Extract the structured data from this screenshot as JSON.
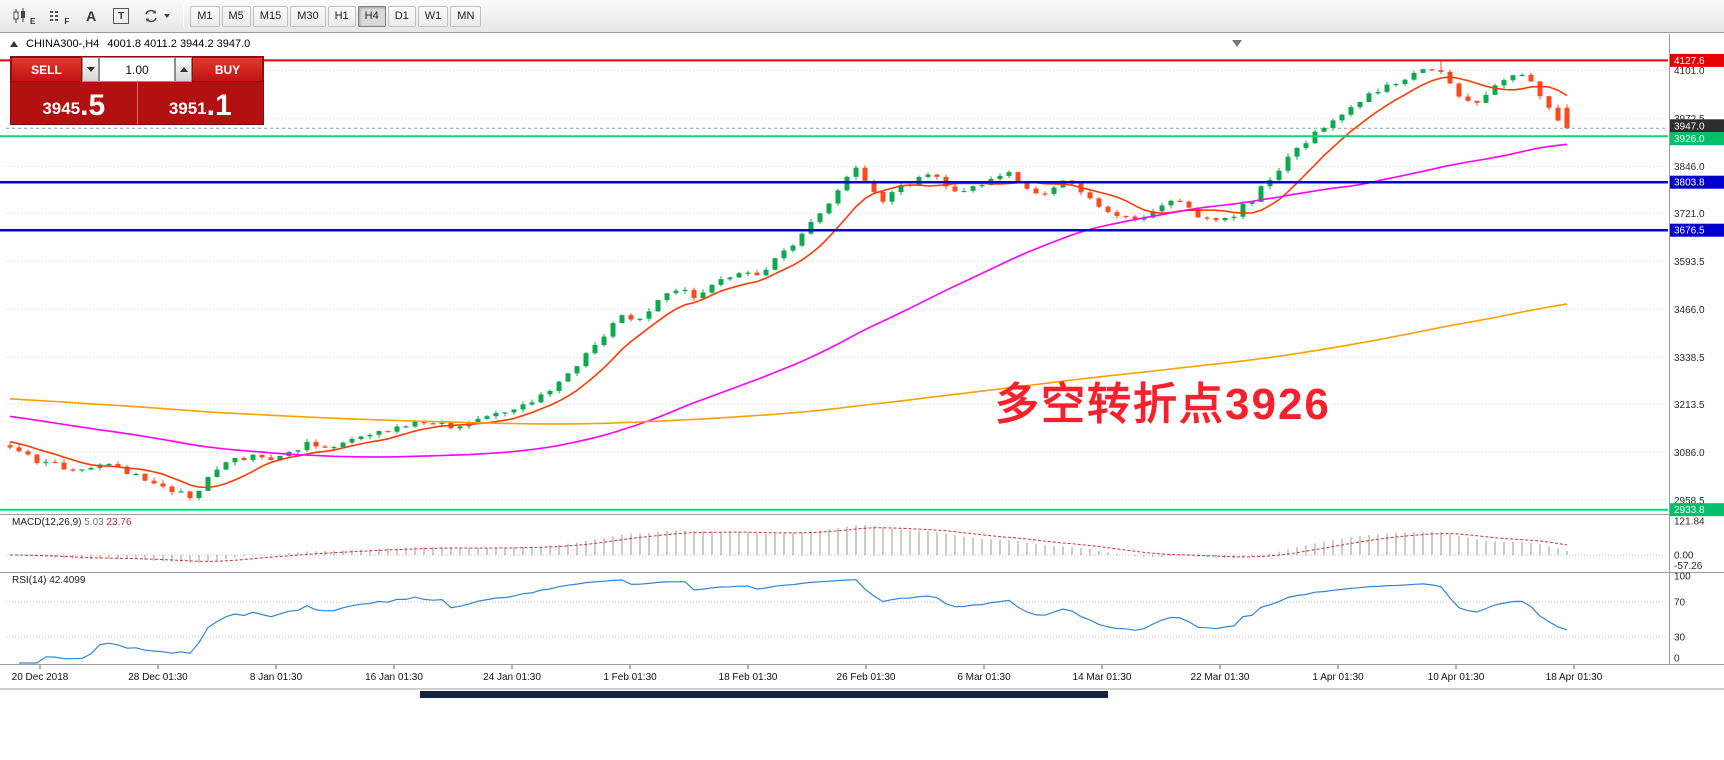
{
  "toolbar": {
    "icon_labels": [
      "E",
      "F",
      "A",
      "T"
    ],
    "timeframes": [
      "M1",
      "M5",
      "M15",
      "M30",
      "H1",
      "H4",
      "D1",
      "W1",
      "MN"
    ],
    "active_timeframe": "H4"
  },
  "chart_header": {
    "symbol": "CHINA300-,H4",
    "ohlc": "4001.8 4011.2 3944.2 3947.0"
  },
  "trade_panel": {
    "sell_label": "SELL",
    "buy_label": "BUY",
    "volume": "1.00",
    "sell_price_main": "3945",
    "sell_price_frac": ".5",
    "buy_price_main": "3951",
    "buy_price_frac": ".1",
    "panel_color": "#b31111"
  },
  "annotation": {
    "text": "多空转折点3926",
    "color": "#f5222d"
  },
  "macd_panel": {
    "name": "MACD(12,26,9)",
    "value_main": "5.03",
    "value_signal": "23.76",
    "axis": [
      {
        "text": "121.84",
        "value": 121.84
      },
      {
        "text": "0.00",
        "value": 0
      },
      {
        "text": "-57.26",
        "value": -57.26
      }
    ]
  },
  "rsi_panel": {
    "name": "RSI(14)",
    "value": "42.4099",
    "axis": [
      {
        "text": "100",
        "value": 100
      },
      {
        "text": "70",
        "value": 70
      },
      {
        "text": "30",
        "value": 30
      },
      {
        "text": "0",
        "value": 0
      }
    ]
  },
  "price_axis": {
    "grid_labels": [
      {
        "text": "4101.0",
        "price": 4101.0
      },
      {
        "text": "3972.5",
        "price": 3972.5
      },
      {
        "text": "3846.0",
        "price": 3846.0
      },
      {
        "text": "3721.0",
        "price": 3721.0
      },
      {
        "text": "3593.5",
        "price": 3593.5
      },
      {
        "text": "3466.0",
        "price": 3466.0
      },
      {
        "text": "3338.5",
        "price": 3338.5
      },
      {
        "text": "3213.5",
        "price": 3213.5
      },
      {
        "text": "3086.0",
        "price": 3086.0
      },
      {
        "text": "2958.5",
        "price": 2958.5
      }
    ],
    "tags": [
      {
        "text": "4127.6",
        "price": 4127.6,
        "bg": "#e60000",
        "dy": 0
      },
      {
        "text": "3947.0",
        "price": 3947.0,
        "bg": "#2d2d2d",
        "dy": -2.5
      },
      {
        "text": "3926.0",
        "price": 3926.0,
        "bg": "#00c06a",
        "dy": 2.5
      },
      {
        "text": "3803.8",
        "price": 3803.8,
        "bg": "#0000cc",
        "dy": 0
      },
      {
        "text": "3676.5",
        "price": 3676.5,
        "bg": "#0000cc",
        "dy": 0
      },
      {
        "text": "2933.8",
        "price": 2933.8,
        "bg": "#00c06a",
        "dy": 0
      }
    ]
  },
  "time_axis": [
    "20 Dec 2018",
    "28 Dec 01:30",
    "8 Jan 01:30",
    "16 Jan 01:30",
    "24 Jan 01:30",
    "1 Feb 01:30",
    "18 Feb 01:30",
    "26 Feb 01:30",
    "6 Mar 01:30",
    "14 Mar 01:30",
    "22 Mar 01:30",
    "1 Apr 01:30",
    "10 Apr 01:30",
    "18 Apr 01:30"
  ],
  "chart_data": {
    "type": "candlestick",
    "symbol": "CHINA300-",
    "timeframe": "H4",
    "ohlc_current": {
      "open": 4001.8,
      "high": 4011.2,
      "low": 3944.2,
      "close": 3947.0
    },
    "current_price": 3947.0,
    "visible_price_range": [
      2925,
      4195
    ],
    "extremes": {
      "low": 2958.5,
      "high": 4126.8
    },
    "horizontal_lines": [
      {
        "price": 4127.6,
        "color": "#ee0000",
        "width": 2
      },
      {
        "price": 3926.0,
        "color": "#00d97a",
        "width": 2
      },
      {
        "price": 3803.8,
        "color": "#0000e0",
        "width": 2.5
      },
      {
        "price": 3676.5,
        "color": "#0000e0",
        "width": 2.5
      },
      {
        "price": 2933.8,
        "color": "#00d97a",
        "width": 2
      }
    ],
    "moving_averages": [
      {
        "period": 8,
        "color": "#ff3c00",
        "seed": 3140
      },
      {
        "period": 55,
        "color": "#ff00ff",
        "seed": 3270
      },
      {
        "period": 200,
        "color": "#ffa000",
        "seed": 3360
      }
    ],
    "colors": {
      "up": "#0fa84e",
      "down": "#fb4a1d",
      "macd_histogram": "#8fa08f",
      "macd_signal": "#d23030",
      "rsi_line": "#3385d6"
    },
    "price_path": [
      [
        10,
        3105
      ],
      [
        50,
        3060
      ],
      [
        90,
        3035
      ],
      [
        120,
        3055
      ],
      [
        150,
        3015
      ],
      [
        175,
        2985
      ],
      [
        200,
        2968
      ],
      [
        215,
        3012
      ],
      [
        240,
        3062
      ],
      [
        265,
        3078
      ],
      [
        282,
        3058
      ],
      [
        300,
        3092
      ],
      [
        320,
        3112
      ],
      [
        340,
        3088
      ],
      [
        362,
        3122
      ],
      [
        394,
        3147
      ],
      [
        430,
        3168
      ],
      [
        460,
        3152
      ],
      [
        490,
        3177
      ],
      [
        515,
        3192
      ],
      [
        540,
        3217
      ],
      [
        562,
        3252
      ],
      [
        582,
        3307
      ],
      [
        602,
        3367
      ],
      [
        622,
        3422
      ],
      [
        633,
        3452
      ],
      [
        646,
        3437
      ],
      [
        666,
        3482
      ],
      [
        686,
        3522
      ],
      [
        706,
        3497
      ],
      [
        726,
        3547
      ],
      [
        748,
        3562
      ],
      [
        766,
        3556
      ],
      [
        782,
        3592
      ],
      [
        802,
        3642
      ],
      [
        820,
        3695
      ],
      [
        838,
        3742
      ],
      [
        852,
        3808
      ],
      [
        866,
        3844
      ],
      [
        880,
        3792
      ],
      [
        892,
        3752
      ],
      [
        906,
        3782
      ],
      [
        922,
        3807
      ],
      [
        936,
        3832
      ],
      [
        952,
        3797
      ],
      [
        968,
        3767
      ],
      [
        986,
        3797
      ],
      [
        1002,
        3817
      ],
      [
        1016,
        3837
      ],
      [
        1032,
        3802
      ],
      [
        1046,
        3767
      ],
      [
        1062,
        3787
      ],
      [
        1076,
        3807
      ],
      [
        1090,
        3777
      ],
      [
        1104,
        3752
      ],
      [
        1122,
        3722
      ],
      [
        1142,
        3697
      ],
      [
        1162,
        3727
      ],
      [
        1182,
        3757
      ],
      [
        1202,
        3722
      ],
      [
        1222,
        3692
      ],
      [
        1242,
        3717
      ],
      [
        1262,
        3762
      ],
      [
        1282,
        3822
      ],
      [
        1302,
        3882
      ],
      [
        1322,
        3932
      ],
      [
        1340,
        3967
      ],
      [
        1357,
        4002
      ],
      [
        1377,
        4037
      ],
      [
        1397,
        4062
      ],
      [
        1417,
        4087
      ],
      [
        1437,
        4107
      ],
      [
        1452,
        4087
      ],
      [
        1467,
        4042
      ],
      [
        1482,
        4002
      ],
      [
        1497,
        4037
      ],
      [
        1512,
        4072
      ],
      [
        1527,
        4092
      ],
      [
        1542,
        4062
      ],
      [
        1554,
        4012
      ],
      [
        1564,
        3977
      ],
      [
        1576,
        3952
      ]
    ]
  }
}
